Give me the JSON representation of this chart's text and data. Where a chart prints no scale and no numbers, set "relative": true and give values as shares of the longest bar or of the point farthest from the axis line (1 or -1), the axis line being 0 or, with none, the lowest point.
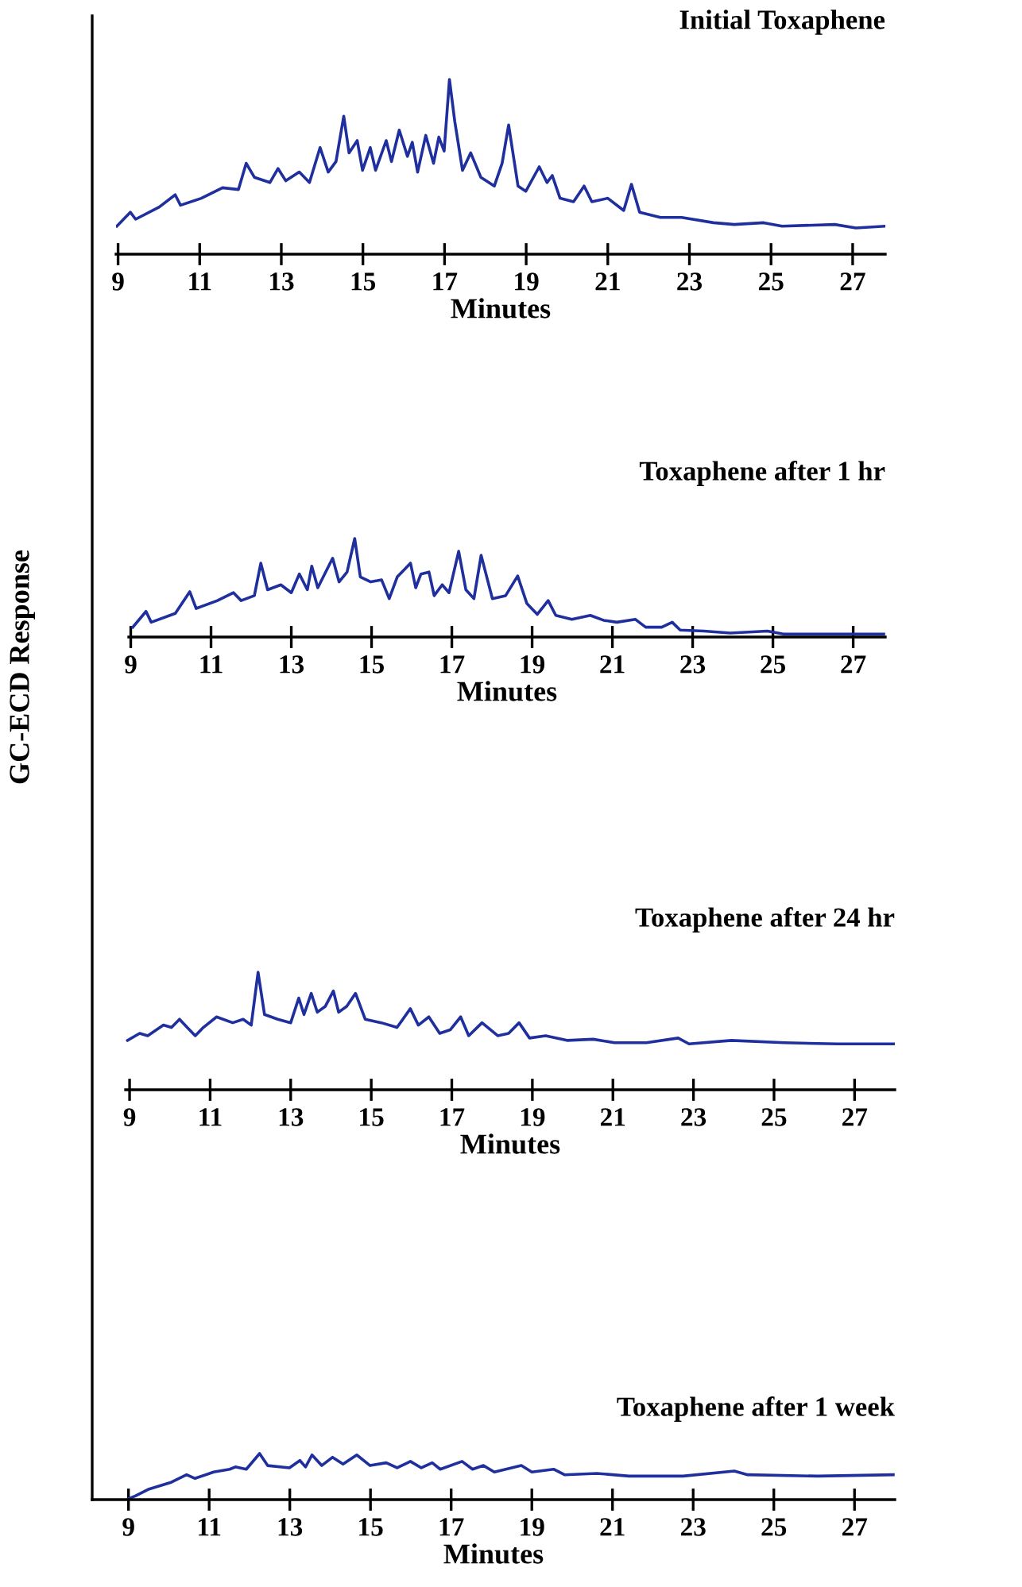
{
  "chart_data": [
    {
      "type": "line",
      "title": "Initial Toxaphene",
      "xlabel": "Minutes",
      "relative": true,
      "xlim": [
        8.95,
        27.8
      ],
      "xticks": [
        9,
        11,
        13,
        15,
        17,
        19,
        21,
        23,
        25,
        27
      ],
      "grid": false,
      "series": [
        {
          "color": "#1f2f9e",
          "x": [
            8.97,
            9.3,
            9.43,
            10.01,
            10.4,
            10.53,
            11.04,
            11.56,
            11.95,
            12.14,
            12.34,
            12.72,
            12.92,
            13.11,
            13.44,
            13.69,
            13.95,
            14.15,
            14.34,
            14.53,
            14.66,
            14.86,
            14.99,
            15.18,
            15.31,
            15.57,
            15.7,
            15.89,
            16.09,
            16.21,
            16.34,
            16.54,
            16.73,
            16.86,
            16.99,
            17.12,
            17.25,
            17.44,
            17.64,
            17.89,
            18.22,
            18.41,
            18.57,
            18.8,
            18.99,
            19.32,
            19.51,
            19.64,
            19.83,
            20.16,
            20.42,
            20.61,
            21.0,
            21.39,
            21.58,
            21.78,
            22.29,
            22.81,
            23.59,
            24.1,
            24.82,
            25.27,
            26.56,
            27.08,
            27.79
          ],
          "values": [
            0.16,
            0.24,
            0.2,
            0.27,
            0.34,
            0.28,
            0.32,
            0.38,
            0.37,
            0.52,
            0.44,
            0.41,
            0.49,
            0.42,
            0.47,
            0.41,
            0.61,
            0.47,
            0.53,
            0.79,
            0.58,
            0.65,
            0.48,
            0.61,
            0.48,
            0.65,
            0.53,
            0.71,
            0.56,
            0.64,
            0.47,
            0.68,
            0.52,
            0.67,
            0.59,
            1.0,
            0.76,
            0.48,
            0.58,
            0.44,
            0.39,
            0.52,
            0.74,
            0.39,
            0.36,
            0.5,
            0.41,
            0.45,
            0.32,
            0.3,
            0.39,
            0.3,
            0.32,
            0.25,
            0.4,
            0.24,
            0.21,
            0.21,
            0.18,
            0.17,
            0.18,
            0.16,
            0.17,
            0.15,
            0.16
          ]
        }
      ]
    },
    {
      "type": "line",
      "title": "Toxaphene after 1 hr",
      "xlabel": "Minutes",
      "ylabel": "GC-ECD Response",
      "relative": true,
      "xlim": [
        8.95,
        27.8
      ],
      "xticks": [
        9,
        11,
        13,
        15,
        17,
        19,
        21,
        23,
        25,
        27
      ],
      "grid": false,
      "series": [
        {
          "color": "#1f2f9e",
          "x": [
            9.05,
            9.38,
            9.51,
            10.11,
            10.47,
            10.63,
            11.16,
            11.56,
            11.75,
            12.08,
            12.24,
            12.41,
            12.74,
            13.0,
            13.2,
            13.4,
            13.51,
            13.66,
            14.03,
            14.19,
            14.39,
            14.58,
            14.72,
            14.98,
            15.25,
            15.44,
            15.64,
            15.97,
            16.1,
            16.23,
            16.43,
            16.56,
            16.76,
            16.93,
            17.17,
            17.35,
            17.55,
            17.73,
            18.01,
            18.34,
            18.64,
            18.87,
            19.13,
            19.4,
            19.59,
            19.99,
            20.45,
            20.78,
            21.11,
            21.57,
            21.83,
            22.23,
            22.49,
            22.69,
            23.28,
            23.94,
            24.86,
            25.26,
            26.58,
            27.76
          ],
          "values": [
            0.1,
            0.26,
            0.15,
            0.24,
            0.46,
            0.29,
            0.37,
            0.45,
            0.37,
            0.42,
            0.75,
            0.48,
            0.53,
            0.45,
            0.64,
            0.48,
            0.72,
            0.5,
            0.8,
            0.56,
            0.66,
            1.0,
            0.61,
            0.56,
            0.58,
            0.39,
            0.61,
            0.75,
            0.5,
            0.64,
            0.66,
            0.42,
            0.53,
            0.45,
            0.87,
            0.48,
            0.39,
            0.83,
            0.39,
            0.42,
            0.62,
            0.34,
            0.23,
            0.37,
            0.22,
            0.18,
            0.22,
            0.17,
            0.15,
            0.18,
            0.1,
            0.1,
            0.15,
            0.07,
            0.06,
            0.04,
            0.06,
            0.03,
            0.03,
            0.03
          ]
        }
      ]
    },
    {
      "type": "line",
      "title": "Toxaphene after 24 hr",
      "xlabel": "Minutes",
      "relative": true,
      "xlim": [
        8.9,
        28.0
      ],
      "xticks": [
        9,
        11,
        13,
        15,
        17,
        19,
        21,
        23,
        25,
        27
      ],
      "grid": false,
      "series": [
        {
          "color": "#1f2f9e",
          "x": [
            8.95,
            9.25,
            9.45,
            9.84,
            10.04,
            10.24,
            10.43,
            10.63,
            10.83,
            11.16,
            11.56,
            11.82,
            12.02,
            12.19,
            12.35,
            12.68,
            13.0,
            13.2,
            13.33,
            13.51,
            13.66,
            13.86,
            14.06,
            14.19,
            14.39,
            14.61,
            14.85,
            15.25,
            15.64,
            15.97,
            16.17,
            16.43,
            16.7,
            16.96,
            17.22,
            17.42,
            17.75,
            18.14,
            18.41,
            18.67,
            18.93,
            19.33,
            19.86,
            20.51,
            21.04,
            21.83,
            22.62,
            22.89,
            23.94,
            25.26,
            26.58,
            28.0
          ],
          "values": [
            0.42,
            0.48,
            0.46,
            0.55,
            0.53,
            0.6,
            0.53,
            0.46,
            0.53,
            0.62,
            0.57,
            0.6,
            0.55,
            1.0,
            0.64,
            0.6,
            0.57,
            0.78,
            0.64,
            0.82,
            0.66,
            0.71,
            0.84,
            0.66,
            0.71,
            0.82,
            0.6,
            0.57,
            0.53,
            0.69,
            0.55,
            0.62,
            0.48,
            0.51,
            0.62,
            0.46,
            0.57,
            0.46,
            0.48,
            0.57,
            0.44,
            0.46,
            0.42,
            0.43,
            0.4,
            0.4,
            0.44,
            0.39,
            0.42,
            0.4,
            0.39,
            0.39
          ]
        }
      ]
    },
    {
      "type": "line",
      "title": "Toxaphene after 1 week",
      "xlabel": "Minutes",
      "relative": true,
      "xlim": [
        8.1,
        28.0
      ],
      "xticks": [
        9,
        11,
        13,
        15,
        17,
        19,
        21,
        23,
        25,
        27
      ],
      "grid": false,
      "series": [
        {
          "color": "#1f2f9e",
          "x": [
            9.0,
            9.17,
            9.51,
            10.04,
            10.44,
            10.65,
            11.11,
            11.51,
            11.65,
            11.92,
            12.25,
            12.45,
            12.99,
            13.25,
            13.39,
            13.55,
            13.79,
            14.06,
            14.32,
            14.66,
            14.99,
            15.39,
            15.66,
            15.99,
            16.26,
            16.53,
            16.73,
            17.27,
            17.53,
            17.8,
            18.07,
            18.74,
            19.0,
            19.54,
            19.81,
            20.61,
            21.41,
            22.75,
            24.02,
            24.35,
            26.09,
            27.96
          ],
          "values": [
            0.02,
            0.08,
            0.23,
            0.37,
            0.54,
            0.46,
            0.6,
            0.66,
            0.71,
            0.66,
            1.0,
            0.74,
            0.69,
            0.85,
            0.71,
            0.97,
            0.74,
            0.92,
            0.77,
            0.97,
            0.74,
            0.8,
            0.69,
            0.83,
            0.69,
            0.8,
            0.66,
            0.83,
            0.66,
            0.74,
            0.6,
            0.74,
            0.6,
            0.66,
            0.54,
            0.57,
            0.51,
            0.51,
            0.62,
            0.54,
            0.51,
            0.54
          ]
        }
      ]
    }
  ]
}
